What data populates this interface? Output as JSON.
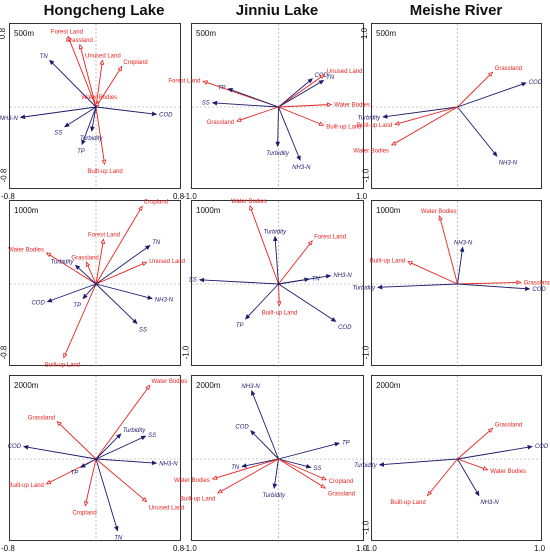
{
  "columns": [
    {
      "title": "Hongcheng Lake"
    },
    {
      "title": "Jinniu Lake"
    },
    {
      "title": "Meishe River"
    }
  ],
  "colors": {
    "environment": "#e8221f",
    "water_quality": "#1c1c6e",
    "axis_line": "#9a9a9a"
  },
  "chart_data": [
    {
      "type": "biplot",
      "column": "Hongcheng Lake",
      "buffer": "500m",
      "xlim": [
        -0.8,
        0.8
      ],
      "ylim": [
        -0.8,
        0.8
      ],
      "xticks": [
        "-0.8",
        "0.8"
      ],
      "yticks": [
        "0.8",
        "-0.8"
      ],
      "vectors": [
        {
          "label": "Forest Land",
          "group": "environment",
          "x": -0.26,
          "y": 0.68
        },
        {
          "label": "Grassland",
          "group": "environment",
          "x": -0.15,
          "y": 0.6
        },
        {
          "label": "Unused Land",
          "group": "environment",
          "x": 0.06,
          "y": 0.45
        },
        {
          "label": "Cropland",
          "group": "environment",
          "x": 0.24,
          "y": 0.39
        },
        {
          "label": "Water Bodies",
          "group": "environment",
          "x": 0.02,
          "y": 0.05
        },
        {
          "label": "Built-up Land",
          "group": "environment",
          "x": 0.08,
          "y": -0.55
        },
        {
          "label": "TN",
          "group": "water_quality",
          "x": -0.43,
          "y": 0.45
        },
        {
          "label": "COD",
          "group": "water_quality",
          "x": 0.56,
          "y": -0.07
        },
        {
          "label": "NH3-N",
          "group": "water_quality",
          "x": -0.7,
          "y": -0.1
        },
        {
          "label": "SS",
          "group": "water_quality",
          "x": -0.29,
          "y": -0.19
        },
        {
          "label": "Turbidity",
          "group": "water_quality",
          "x": -0.04,
          "y": -0.23
        },
        {
          "label": "TP",
          "group": "water_quality",
          "x": -0.13,
          "y": -0.36
        }
      ]
    },
    {
      "type": "biplot",
      "column": "Jinniu Lake",
      "buffer": "500m",
      "xlim": [
        -1.0,
        1.0
      ],
      "ylim": [
        -1.0,
        1.0
      ],
      "xticks": [
        "-1.0",
        "1.0"
      ],
      "yticks": [],
      "vectors": [
        {
          "label": "Forest Land",
          "group": "environment",
          "x": -0.87,
          "y": 0.31
        },
        {
          "label": "COD",
          "group": "water_quality",
          "x": 0.39,
          "y": 0.34
        },
        {
          "label": "Unused Land",
          "group": "environment",
          "x": 0.53,
          "y": 0.39
        },
        {
          "label": "TN",
          "group": "water_quality",
          "x": 0.52,
          "y": 0.32
        },
        {
          "label": "TP",
          "group": "water_quality",
          "x": -0.58,
          "y": 0.22
        },
        {
          "label": "SS",
          "group": "water_quality",
          "x": -0.76,
          "y": 0.05
        },
        {
          "label": "Water Bodies",
          "group": "environment",
          "x": 0.61,
          "y": 0.03
        },
        {
          "label": "Grassland",
          "group": "environment",
          "x": -0.48,
          "y": -0.17
        },
        {
          "label": "Built-up Land",
          "group": "environment",
          "x": 0.52,
          "y": -0.22
        },
        {
          "label": "Turbidity",
          "group": "water_quality",
          "x": -0.01,
          "y": -0.47
        },
        {
          "label": "NH3-N",
          "group": "water_quality",
          "x": 0.25,
          "y": -0.64
        }
      ]
    },
    {
      "type": "biplot",
      "column": "Meishe River",
      "buffer": "500m",
      "xlim": [
        -1.0,
        1.0
      ],
      "ylim": [
        -1.0,
        1.0
      ],
      "xticks": [],
      "yticks": [
        "1.0",
        "-1.0"
      ],
      "vectors": [
        {
          "label": "Grassland",
          "group": "environment",
          "x": 0.41,
          "y": 0.42
        },
        {
          "label": "COD",
          "group": "water_quality",
          "x": 0.8,
          "y": 0.29
        },
        {
          "label": "Turbidity",
          "group": "water_quality",
          "x": -0.87,
          "y": -0.12
        },
        {
          "label": "Built-up Land",
          "group": "environment",
          "x": -0.73,
          "y": -0.21
        },
        {
          "label": "Water Bodies",
          "group": "environment",
          "x": -0.77,
          "y": -0.46
        },
        {
          "label": "NH3-N",
          "group": "water_quality",
          "x": 0.46,
          "y": -0.59
        }
      ]
    },
    {
      "type": "biplot",
      "column": "Hongcheng Lake",
      "buffer": "1000m",
      "xlim": [
        -0.8,
        0.8
      ],
      "ylim": [
        -0.8,
        0.8
      ],
      "xticks": [],
      "yticks": [
        "-0.8"
      ],
      "vectors": [
        {
          "label": "Cropland",
          "group": "environment",
          "x": 0.43,
          "y": 0.75
        },
        {
          "label": "Forest Land",
          "group": "environment",
          "x": 0.07,
          "y": 0.43
        },
        {
          "label": "Water Bodies",
          "group": "environment",
          "x": -0.46,
          "y": 0.3
        },
        {
          "label": "Grassland",
          "group": "environment",
          "x": -0.09,
          "y": 0.21
        },
        {
          "label": "Unused Land",
          "group": "environment",
          "x": 0.47,
          "y": 0.21
        },
        {
          "label": "Built-up Land",
          "group": "environment",
          "x": -0.3,
          "y": -0.71
        },
        {
          "label": "TN",
          "group": "water_quality",
          "x": 0.5,
          "y": 0.37
        },
        {
          "label": "Turbidity",
          "group": "water_quality",
          "x": -0.19,
          "y": 0.18
        },
        {
          "label": "COD",
          "group": "water_quality",
          "x": -0.45,
          "y": -0.17
        },
        {
          "label": "TP",
          "group": "water_quality",
          "x": -0.12,
          "y": -0.14
        },
        {
          "label": "NH3-N",
          "group": "water_quality",
          "x": 0.52,
          "y": -0.14
        },
        {
          "label": "SS",
          "group": "water_quality",
          "x": 0.38,
          "y": -0.38
        }
      ]
    },
    {
      "type": "biplot",
      "column": "Jinniu Lake",
      "buffer": "1000m",
      "xlim": [
        -1.0,
        1.0
      ],
      "ylim": [
        -1.0,
        1.0
      ],
      "xticks": [],
      "yticks": [
        "-1.0"
      ],
      "vectors": [
        {
          "label": "Water Bodies",
          "group": "environment",
          "x": -0.33,
          "y": 0.94
        },
        {
          "label": "Turbidity",
          "group": "water_quality",
          "x": -0.04,
          "y": 0.57
        },
        {
          "label": "Forest Land",
          "group": "environment",
          "x": 0.39,
          "y": 0.52
        },
        {
          "label": "SS",
          "group": "water_quality",
          "x": -0.91,
          "y": 0.05
        },
        {
          "label": "TN",
          "group": "water_quality",
          "x": 0.35,
          "y": 0.06
        },
        {
          "label": "NH3-N",
          "group": "water_quality",
          "x": 0.6,
          "y": 0.1
        },
        {
          "label": "Built-up Land",
          "group": "environment",
          "x": 0.01,
          "y": -0.26
        },
        {
          "label": "TP",
          "group": "water_quality",
          "x": -0.38,
          "y": -0.42
        },
        {
          "label": "COD",
          "group": "water_quality",
          "x": 0.66,
          "y": -0.45
        }
      ]
    },
    {
      "type": "biplot",
      "column": "Meishe River",
      "buffer": "1000m",
      "xlim": [
        -1.0,
        1.0
      ],
      "ylim": [
        -1.0,
        1.0
      ],
      "xticks": [],
      "yticks": [
        "-1.0"
      ],
      "vectors": [
        {
          "label": "Water Bodies",
          "group": "environment",
          "x": -0.21,
          "y": 0.82
        },
        {
          "label": "NH3-N",
          "group": "water_quality",
          "x": 0.06,
          "y": 0.44
        },
        {
          "label": "Built-up Land",
          "group": "environment",
          "x": -0.58,
          "y": 0.27
        },
        {
          "label": "Grassland",
          "group": "environment",
          "x": 0.74,
          "y": 0.02
        },
        {
          "label": "COD",
          "group": "water_quality",
          "x": 0.84,
          "y": -0.06
        },
        {
          "label": "Turbidity",
          "group": "water_quality",
          "x": -0.93,
          "y": -0.04
        }
      ]
    },
    {
      "type": "biplot",
      "column": "Hongcheng Lake",
      "buffer": "2000m",
      "xlim": [
        -0.8,
        0.8
      ],
      "ylim": [
        -0.8,
        0.8
      ],
      "xticks": [
        "-0.8",
        "0.8"
      ],
      "yticks": [],
      "vectors": [
        {
          "label": "Water Bodies",
          "group": "environment",
          "x": 0.5,
          "y": 0.71
        },
        {
          "label": "Grassland",
          "group": "environment",
          "x": -0.36,
          "y": 0.36
        },
        {
          "label": "Built-up Land",
          "group": "environment",
          "x": -0.46,
          "y": -0.24
        },
        {
          "label": "Cropland",
          "group": "environment",
          "x": -0.1,
          "y": -0.45
        },
        {
          "label": "Unused Land",
          "group": "environment",
          "x": 0.47,
          "y": -0.41
        },
        {
          "label": "Turbidity",
          "group": "water_quality",
          "x": 0.23,
          "y": 0.24
        },
        {
          "label": "SS",
          "group": "water_quality",
          "x": 0.46,
          "y": 0.22
        },
        {
          "label": "COD",
          "group": "water_quality",
          "x": -0.67,
          "y": 0.12
        },
        {
          "label": "TP",
          "group": "water_quality",
          "x": -0.14,
          "y": -0.08
        },
        {
          "label": "NH3-N",
          "group": "water_quality",
          "x": 0.56,
          "y": -0.04
        },
        {
          "label": "TN",
          "group": "water_quality",
          "x": 0.2,
          "y": -0.69
        }
      ]
    },
    {
      "type": "biplot",
      "column": "Jinniu Lake",
      "buffer": "2000m",
      "xlim": [
        -1.0,
        1.0
      ],
      "ylim": [
        -1.0,
        1.0
      ],
      "xticks": [
        "-1.0",
        "1.0"
      ],
      "yticks": [],
      "vectors": [
        {
          "label": "NH3-N",
          "group": "water_quality",
          "x": -0.31,
          "y": 0.82
        },
        {
          "label": "COD",
          "group": "water_quality",
          "x": -0.32,
          "y": 0.34
        },
        {
          "label": "TP",
          "group": "water_quality",
          "x": 0.7,
          "y": 0.19
        },
        {
          "label": "TN",
          "group": "water_quality",
          "x": -0.42,
          "y": -0.09
        },
        {
          "label": "SS",
          "group": "water_quality",
          "x": 0.37,
          "y": -0.1
        },
        {
          "label": "Water Bodies",
          "group": "environment",
          "x": -0.76,
          "y": -0.24
        },
        {
          "label": "Built-up Land",
          "group": "environment",
          "x": -0.7,
          "y": -0.41
        },
        {
          "label": "Turbidity",
          "group": "water_quality",
          "x": -0.05,
          "y": -0.35
        },
        {
          "label": "Cropland",
          "group": "environment",
          "x": 0.55,
          "y": -0.25
        },
        {
          "label": "Grassland",
          "group": "environment",
          "x": 0.54,
          "y": -0.35
        }
      ]
    },
    {
      "type": "biplot",
      "column": "Meishe River",
      "buffer": "2000m",
      "xlim": [
        -1.0,
        1.0
      ],
      "ylim": [
        -1.0,
        1.0
      ],
      "xticks": [
        "-1.0",
        "1.0"
      ],
      "yticks": [
        "-1.0"
      ],
      "vectors": [
        {
          "label": "Grassland",
          "group": "environment",
          "x": 0.41,
          "y": 0.37
        },
        {
          "label": "COD",
          "group": "water_quality",
          "x": 0.87,
          "y": 0.15
        },
        {
          "label": "Turbidity",
          "group": "water_quality",
          "x": -0.91,
          "y": -0.07
        },
        {
          "label": "Water Bodies",
          "group": "environment",
          "x": 0.35,
          "y": -0.13
        },
        {
          "label": "Built-up Land",
          "group": "environment",
          "x": -0.35,
          "y": -0.44
        },
        {
          "label": "NH3-N",
          "group": "water_quality",
          "x": 0.25,
          "y": -0.44
        }
      ]
    }
  ]
}
